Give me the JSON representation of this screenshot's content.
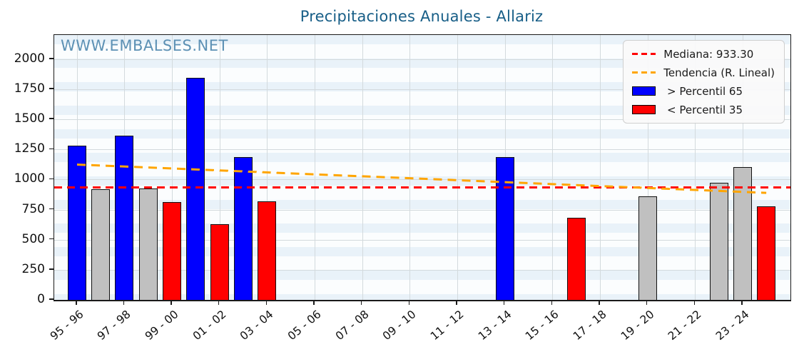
{
  "title": "Precipitaciones Anuales - Allariz",
  "watermark": "WWW.EMBALSES.NET",
  "legend": {
    "items": [
      {
        "type": "line",
        "color": "#ff0000",
        "label": "Mediana: 933.30"
      },
      {
        "type": "line",
        "color": "#ffa500",
        "label": "Tendencia (R. Lineal)"
      },
      {
        "type": "patch",
        "color": "#0000ff",
        "label": " > Percentil 65"
      },
      {
        "type": "patch",
        "color": "#ff0000",
        "label": " < Percentil 35"
      }
    ]
  },
  "chart_data": {
    "type": "bar",
    "title": "Precipitaciones Anuales - Allariz",
    "xlabel": "",
    "ylabel": "",
    "ylim": [
      0,
      2200
    ],
    "yticks": [
      0,
      250,
      500,
      750,
      1000,
      1250,
      1500,
      1750,
      2000
    ],
    "grid": true,
    "legend_position": "top-right",
    "median": 933.3,
    "trend": {
      "start_slot": 0,
      "end_slot": 29,
      "start_value": 1125,
      "end_value": 890,
      "color": "#ffa500"
    },
    "category_colors": {
      "p65": "#0000ff",
      "p35": "#ff0000",
      "mid": "#c0c0c0"
    },
    "x_slot_count": 30,
    "xticks": [
      {
        "slot": 0,
        "label": "95 - 96"
      },
      {
        "slot": 2,
        "label": "97 - 98"
      },
      {
        "slot": 4,
        "label": "99 - 00"
      },
      {
        "slot": 6,
        "label": "01 - 02"
      },
      {
        "slot": 8,
        "label": "03 - 04"
      },
      {
        "slot": 10,
        "label": "05 - 06"
      },
      {
        "slot": 12,
        "label": "07 - 08"
      },
      {
        "slot": 14,
        "label": "09 - 10"
      },
      {
        "slot": 16,
        "label": "11 - 12"
      },
      {
        "slot": 18,
        "label": "13 - 14"
      },
      {
        "slot": 20,
        "label": "15 - 16"
      },
      {
        "slot": 22,
        "label": "17 - 18"
      },
      {
        "slot": 24,
        "label": "19 - 20"
      },
      {
        "slot": 26,
        "label": "21 - 22"
      },
      {
        "slot": 28,
        "label": "23 - 24"
      }
    ],
    "bars": [
      {
        "year": "95 - 96",
        "slot": 0,
        "value": 1280,
        "category": "p65"
      },
      {
        "year": "96 - 97",
        "slot": 1,
        "value": 918,
        "category": "mid"
      },
      {
        "year": "97 - 98",
        "slot": 2,
        "value": 1365,
        "category": "p65"
      },
      {
        "year": "98 - 99",
        "slot": 3,
        "value": 928,
        "category": "mid"
      },
      {
        "year": "99 - 00",
        "slot": 4,
        "value": 815,
        "category": "p35"
      },
      {
        "year": "00 - 01",
        "slot": 5,
        "value": 1845,
        "category": "p65"
      },
      {
        "year": "01 - 02",
        "slot": 6,
        "value": 630,
        "category": "p35"
      },
      {
        "year": "02 - 03",
        "slot": 7,
        "value": 1188,
        "category": "p65"
      },
      {
        "year": "03 - 04",
        "slot": 8,
        "value": 818,
        "category": "p35"
      },
      {
        "year": "13 - 14",
        "slot": 18,
        "value": 1185,
        "category": "p65"
      },
      {
        "year": "16 - 17",
        "slot": 21,
        "value": 685,
        "category": "p35"
      },
      {
        "year": "19 - 20",
        "slot": 24,
        "value": 860,
        "category": "mid"
      },
      {
        "year": "22 - 23",
        "slot": 27,
        "value": 975,
        "category": "mid"
      },
      {
        "year": "23 - 24",
        "slot": 28,
        "value": 1105,
        "category": "mid"
      },
      {
        "year": "24 - 25",
        "slot": 29,
        "value": 780,
        "category": "p35"
      }
    ]
  }
}
